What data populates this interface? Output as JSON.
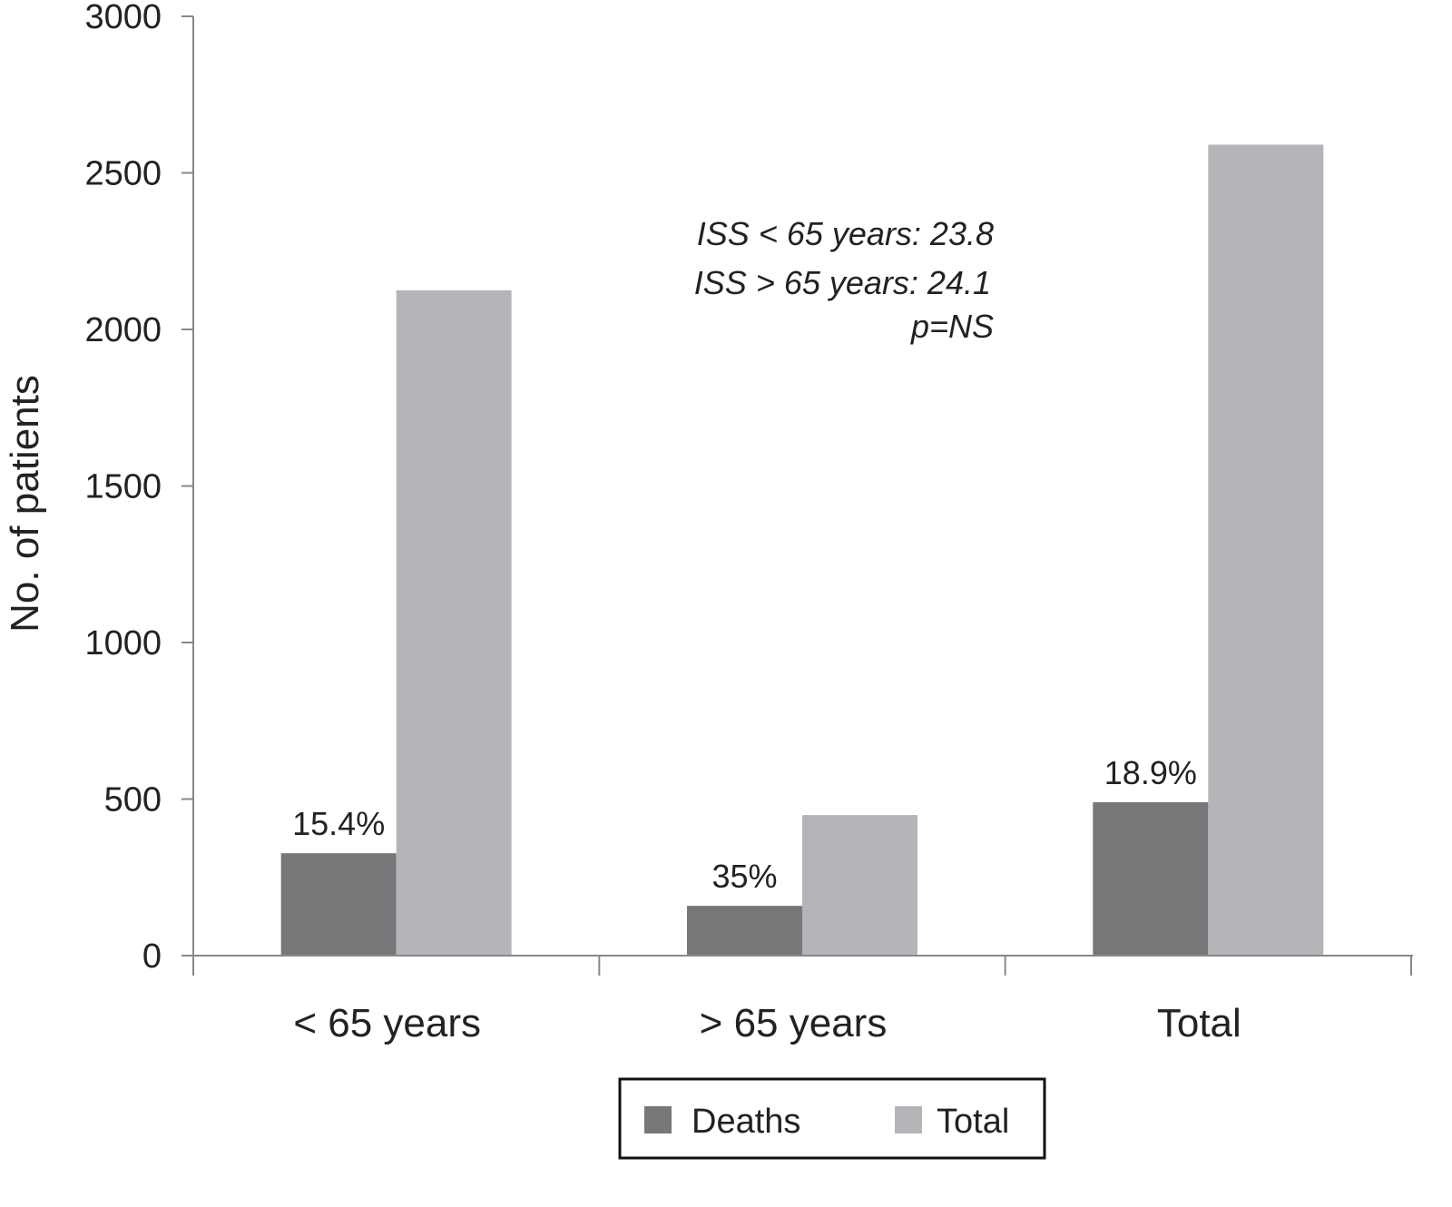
{
  "chart_data": {
    "type": "bar",
    "categories": [
      "< 65 years",
      "> 65 years",
      "Total"
    ],
    "series": [
      {
        "name": "Deaths",
        "values": [
          327,
          159,
          490
        ],
        "color": "#77777a"
      },
      {
        "name": "Total",
        "values": [
          2125,
          449,
          2590
        ],
        "color": "#b4b5b8"
      }
    ],
    "data_labels": [
      "15.4%",
      "35%",
      "18.9%"
    ],
    "ylabel": "No. of patients",
    "xlabel": "",
    "ylim": [
      0,
      3000
    ],
    "yticks": [
      "0",
      "500",
      "1000",
      "1500",
      "2000",
      "2500",
      "3000"
    ],
    "grid": false,
    "legend_position": "bottom-center",
    "annotation": [
      "ISS < 65 years: 23.8",
      "ISS > 65 years: 24.1",
      "p=NS"
    ]
  }
}
